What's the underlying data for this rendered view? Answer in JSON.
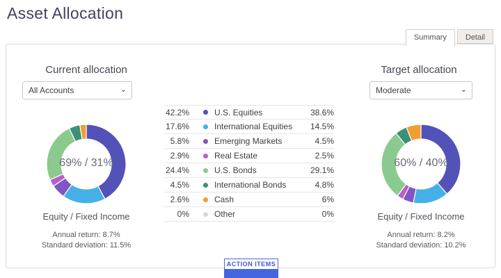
{
  "page": {
    "title": "Asset Allocation"
  },
  "tabs": [
    {
      "label": "Summary",
      "active": true
    },
    {
      "label": "Detail",
      "active": false
    }
  ],
  "current": {
    "heading": "Current allocation",
    "dropdown_value": "All Accounts",
    "center_label": "69% / 31%",
    "sub_label": "Equity / Fixed Income",
    "annual_return": "Annual return: 8.7%",
    "std_dev": "Standard deviation: 11.5%"
  },
  "target": {
    "heading": "Target allocation",
    "dropdown_value": "Moderate",
    "center_label": "60% / 40%",
    "sub_label": "Equity / Fixed Income",
    "annual_return": "Annual return: 8.2%",
    "std_dev": "Standard deviation: 10.2%"
  },
  "legend": {
    "rows": [
      {
        "current": "42.2%",
        "label": "U.S. Equities",
        "target": "38.6%",
        "color": "#5352b8"
      },
      {
        "current": "17.6%",
        "label": "International Equities",
        "target": "14.5%",
        "color": "#45b0e8"
      },
      {
        "current": "5.8%",
        "label": "Emerging Markets",
        "target": "4.5%",
        "color": "#7e57c2"
      },
      {
        "current": "2.9%",
        "label": "Real Estate",
        "target": "2.5%",
        "color": "#b95fc9"
      },
      {
        "current": "24.4%",
        "label": "U.S. Bonds",
        "target": "29.1%",
        "color": "#8bca8e"
      },
      {
        "current": "4.5%",
        "label": "International Bonds",
        "target": "4.8%",
        "color": "#3d9077"
      },
      {
        "current": "2.6%",
        "label": "Cash",
        "target": "6%",
        "color": "#f09e33"
      },
      {
        "current": "0%",
        "label": "Other",
        "target": "0%",
        "color": "#d9d9d9"
      }
    ]
  },
  "action_button": {
    "label": "ACTION ITEMS",
    "accent_color": "#4565e0"
  },
  "chart_data": [
    {
      "type": "pie",
      "title": "Current allocation",
      "categories": [
        "U.S. Equities",
        "International Equities",
        "Emerging Markets",
        "Real Estate",
        "U.S. Bonds",
        "International Bonds",
        "Cash",
        "Other"
      ],
      "values": [
        42.2,
        17.6,
        5.8,
        2.9,
        24.4,
        4.5,
        2.6,
        0
      ],
      "colors": [
        "#5352b8",
        "#45b0e8",
        "#7e57c2",
        "#b95fc9",
        "#8bca8e",
        "#3d9077",
        "#f09e33",
        "#d9d9d9"
      ],
      "center_label": "69% / 31%",
      "donut": true,
      "start_angle_deg": -90,
      "direction": "clockwise"
    },
    {
      "type": "pie",
      "title": "Target allocation",
      "categories": [
        "U.S. Equities",
        "International Equities",
        "Emerging Markets",
        "Real Estate",
        "U.S. Bonds",
        "International Bonds",
        "Cash",
        "Other"
      ],
      "values": [
        38.6,
        14.5,
        4.5,
        2.5,
        29.1,
        4.8,
        6,
        0
      ],
      "colors": [
        "#5352b8",
        "#45b0e8",
        "#7e57c2",
        "#b95fc9",
        "#8bca8e",
        "#3d9077",
        "#f09e33",
        "#d9d9d9"
      ],
      "center_label": "60% / 40%",
      "donut": true,
      "start_angle_deg": -90,
      "direction": "clockwise"
    }
  ]
}
